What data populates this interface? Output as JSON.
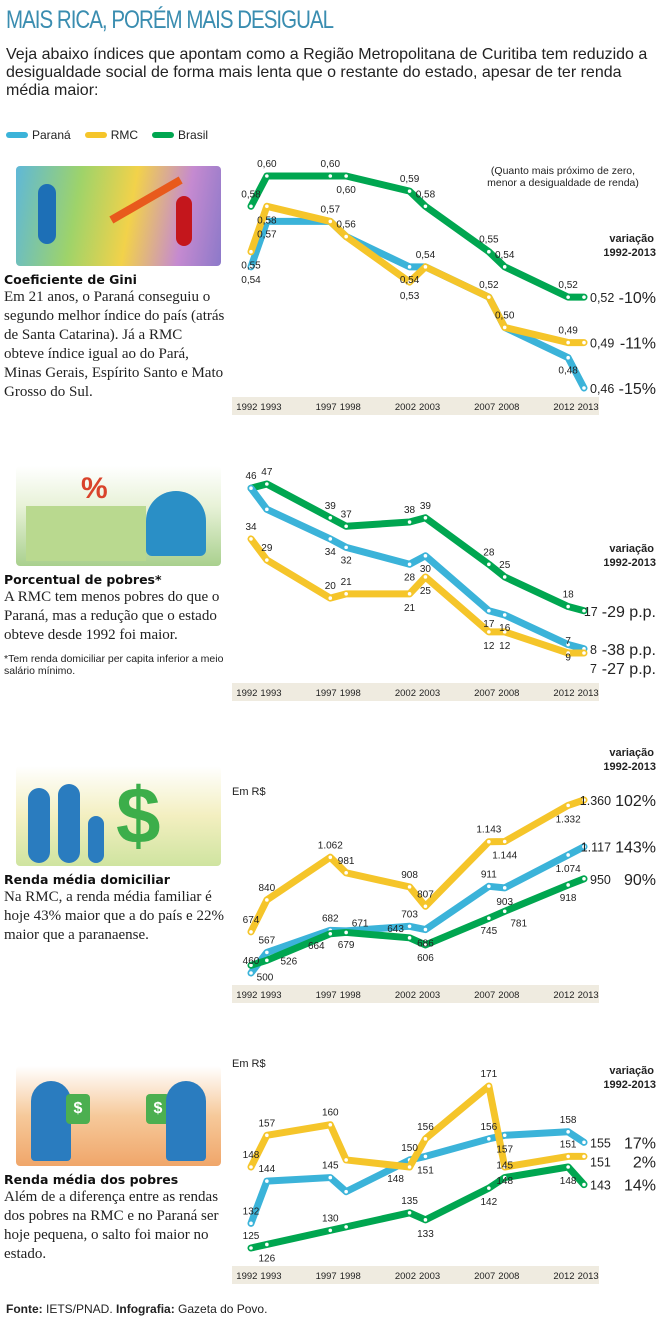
{
  "header": {
    "title": "MAIS RICA, PORÉM MAIS DESIGUAL",
    "intro": "Veja abaixo índices que apontam como a Região Metropolitana de Curitiba tem reduzido a desigualdade social de forma mais lenta que o restante do estado, apesar de ter renda média maior:"
  },
  "legend": [
    {
      "name": "Paraná",
      "color": "#3bb3d9"
    },
    {
      "name": "RMC",
      "color": "#f5c52a"
    },
    {
      "name": "Brasil",
      "color": "#00a650"
    }
  ],
  "panels": [
    {
      "title": "Coeficiente de Gini",
      "body": "Em 21 anos, o Paraná conseguiu o segundo melhor índice do país (atrás de Santa Catarina). Já a RMC obteve índice igual ao do Pará, Minas Gerais, Espírito Santo e Mato Grosso do Sul.",
      "note": ""
    },
    {
      "title": "Porcentual de pobres*",
      "body": "A RMC tem menos pobres do que o Paraná, mas a redução que o estado obteve desde 1992 foi maior.",
      "note": "*Tem renda domiciliar per capita inferior a meio salário mínimo."
    },
    {
      "title": "Renda média domiciliar",
      "body": "Na RMC, a renda média familiar é hoje 43% maior que a do país e 22% maior que a paranaense.",
      "note": ""
    },
    {
      "title": "Renda média dos pobres",
      "body": "Além de a diferença entre as rendas dos pobres na RMC e no Paraná ser hoje pequena, o salto foi maior no estado.",
      "note": ""
    }
  ],
  "chart_data": [
    {
      "type": "line",
      "title": "Coeficiente de Gini",
      "note": "(Quanto mais próximo de zero, menor a desigualdade de renda)",
      "unit_label": "",
      "variation_header": [
        "variação",
        "1992-2013"
      ],
      "x": [
        1992,
        1993,
        1997,
        1998,
        2002,
        2003,
        2007,
        2008,
        2012,
        2013
      ],
      "x_tick_labels": [
        "1992",
        "1993",
        "1997",
        "1998",
        "2002",
        "2003",
        "2007",
        "2008",
        "2012",
        "2013"
      ],
      "grid": false,
      "series": [
        {
          "name": "Brasil",
          "color": "#00a650",
          "values": [
            0.58,
            0.6,
            0.6,
            0.6,
            0.59,
            0.58,
            0.55,
            0.54,
            0.52,
            0.52
          ],
          "labels": [
            "0,58",
            "0,60",
            "0,60",
            "0,60",
            "0,59",
            "0,58",
            "0,55",
            "0,54",
            "0,52",
            "0,52"
          ],
          "variation": "-10%"
        },
        {
          "name": "Paraná",
          "color": "#3bb3d9",
          "values": [
            0.54,
            0.57,
            0.57,
            0.56,
            0.54,
            0.54,
            0.52,
            0.5,
            0.48,
            0.46
          ],
          "labels": [
            "0,54",
            "0,57",
            "",
            "",
            "0,54",
            "",
            "",
            "",
            "0,48",
            "0,46"
          ],
          "variation": "-15%"
        },
        {
          "name": "RMC",
          "color": "#f5c52a",
          "values": [
            0.55,
            0.58,
            0.57,
            0.56,
            0.53,
            0.54,
            0.52,
            0.5,
            0.49,
            0.49
          ],
          "labels": [
            "0,55",
            "0,58",
            "0,57",
            "0,56",
            "0,53",
            "0,54",
            "0,52",
            "0,50",
            "0,49",
            "0,49"
          ],
          "variation": "-11%"
        }
      ]
    },
    {
      "type": "line",
      "title": "Porcentual de pobres*",
      "note": "",
      "unit_label": "",
      "variation_header": [
        "variação",
        "1992-2013"
      ],
      "x": [
        1992,
        1993,
        1997,
        1998,
        2002,
        2003,
        2007,
        2008,
        2012,
        2013
      ],
      "x_tick_labels": [
        "1992",
        "1993",
        "1997",
        "1998",
        "2002",
        "2003",
        "2007",
        "2008",
        "2012",
        "2013"
      ],
      "grid": false,
      "series": [
        {
          "name": "Brasil",
          "color": "#00a650",
          "values": [
            46,
            47,
            39,
            37,
            38,
            39,
            28,
            25,
            18,
            17
          ],
          "labels": [
            "46",
            "47",
            "39",
            "37",
            "38",
            "39",
            "28",
            "25",
            "18",
            "17"
          ],
          "variation": "-29 p.p."
        },
        {
          "name": "Paraná",
          "color": "#3bb3d9",
          "values": [
            46,
            41,
            34,
            32,
            28,
            30,
            17,
            16,
            9,
            8
          ],
          "labels": [
            "",
            "",
            "34",
            "32",
            "28",
            "30",
            "17",
            "16",
            "9",
            "8"
          ],
          "variation": "-38 p.p."
        },
        {
          "name": "RMC",
          "color": "#f5c52a",
          "values": [
            34,
            29,
            20,
            21,
            21,
            25,
            12,
            12,
            7,
            7
          ],
          "labels": [
            "34",
            "29",
            "20",
            "21",
            "21",
            "25",
            "12",
            "12",
            "7",
            "7"
          ],
          "variation": "-27 p.p."
        }
      ]
    },
    {
      "type": "line",
      "title": "Renda média domiciliar",
      "note": "",
      "unit_label": "Em R$",
      "variation_header": [
        "variação",
        "1992-2013"
      ],
      "x": [
        1992,
        1993,
        1997,
        1998,
        2002,
        2003,
        2007,
        2008,
        2012,
        2013
      ],
      "x_tick_labels": [
        "1992",
        "1993",
        "1997",
        "1998",
        "2002",
        "2003",
        "2007",
        "2008",
        "2012",
        "2013"
      ],
      "grid": false,
      "series": [
        {
          "name": "RMC",
          "color": "#f5c52a",
          "values": [
            674,
            840,
            1062,
            981,
            908,
            807,
            1143,
            1144,
            1332,
            1360
          ],
          "labels": [
            "674",
            "840",
            "1.062",
            "981",
            "908",
            "807",
            "1.143",
            "1.144",
            "1.332",
            "1.360"
          ],
          "variation": "102%"
        },
        {
          "name": "Paraná",
          "color": "#3bb3d9",
          "values": [
            460,
            567,
            682,
            679,
            703,
            686,
            911,
            903,
            1074,
            1117
          ],
          "labels": [
            "460",
            "567",
            "682",
            "679",
            "703",
            "686",
            "911",
            "903",
            "1.074",
            "1.117"
          ],
          "variation": "143%"
        },
        {
          "name": "Brasil",
          "color": "#00a650",
          "values": [
            500,
            526,
            664,
            671,
            643,
            606,
            745,
            781,
            918,
            950
          ],
          "labels": [
            "500",
            "526",
            "664",
            "671",
            "643",
            "606",
            "745",
            "781",
            "918",
            "950"
          ],
          "variation": "90%"
        }
      ]
    },
    {
      "type": "line",
      "title": "Renda média dos pobres",
      "note": "",
      "unit_label": "Em R$",
      "variation_header": [
        "variação",
        "1992-2013"
      ],
      "x": [
        1992,
        1993,
        1997,
        1998,
        2002,
        2003,
        2007,
        2008,
        2012,
        2013
      ],
      "x_tick_labels": [
        "1992",
        "1993",
        "1997",
        "1998",
        "2002",
        "2003",
        "2007",
        "2008",
        "2012",
        "2013"
      ],
      "grid": false,
      "series": [
        {
          "name": "Paraná",
          "color": "#3bb3d9",
          "values": [
            132,
            144,
            145,
            141,
            150,
            151,
            156,
            157,
            158,
            155
          ],
          "labels": [
            "132",
            "144",
            "145",
            "",
            "150",
            "151",
            "156",
            "157",
            "158",
            "155"
          ],
          "variation": "17%"
        },
        {
          "name": "RMC",
          "color": "#f5c52a",
          "values": [
            148,
            157,
            160,
            150,
            148,
            156,
            171,
            148,
            151,
            151
          ],
          "labels": [
            "148",
            "157",
            "160",
            "",
            "148",
            "156",
            "171",
            "148",
            "151",
            "151"
          ],
          "variation": "2%"
        },
        {
          "name": "Brasil",
          "color": "#00a650",
          "values": [
            125,
            126,
            130,
            131,
            135,
            133,
            142,
            145,
            148,
            143
          ],
          "labels": [
            "125",
            "126",
            "130",
            "",
            "135",
            "133",
            "142",
            "145",
            "148",
            "143"
          ],
          "variation": "14%"
        }
      ]
    }
  ],
  "footer": {
    "source_label": "Fonte:",
    "source": "IETS/PNAD.",
    "credit_label": "Infografia:",
    "credit": "Gazeta do Povo."
  }
}
